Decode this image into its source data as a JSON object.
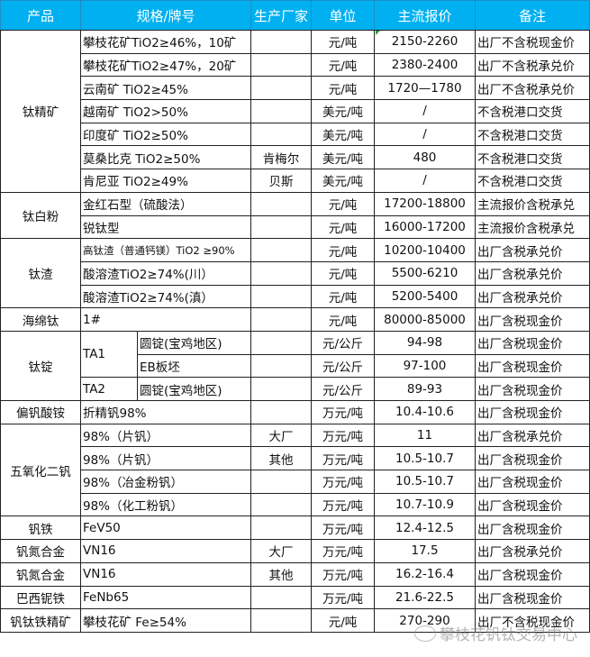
{
  "header": {
    "product": "产品",
    "spec": "规格/牌号",
    "maker": "生产厂家",
    "unit": "单位",
    "price": "主流报价",
    "note": "备注"
  },
  "colors": {
    "header_bg": "#00b0f0",
    "header_text": "#ffffff"
  },
  "groups": [
    {
      "product": "钛精矿",
      "rows": [
        {
          "spec": "攀枝花矿TiO2≥46%，10矿",
          "maker": "",
          "unit": "元/吨",
          "price": "2150-2260",
          "note": "出厂不含税现金价"
        },
        {
          "spec": "攀枝花矿TiO2≥47%，20矿",
          "maker": "",
          "unit": "元/吨",
          "price": "2380-2400",
          "note": "出厂不含税承兑价"
        },
        {
          "spec": "云南矿 TiO2≥45%",
          "maker": "",
          "unit": "元/吨",
          "price": "1720—1780",
          "note": "出厂不含税承兑价"
        },
        {
          "spec": "越南矿 TiO2>50%",
          "maker": "",
          "unit": "美元/吨",
          "price": "/",
          "note": "不含税港口交货"
        },
        {
          "spec": "印度矿 TiO2≥50%",
          "maker": "",
          "unit": "美元/吨",
          "price": "/",
          "note": "不含税港口交货"
        },
        {
          "spec": "莫桑比克 TiO2≥50%",
          "maker": "肯梅尔",
          "unit": "美元/吨",
          "price": "480",
          "note": "不含税港口交货"
        },
        {
          "spec": "肯尼亚 TiO2≥49%",
          "maker": "贝斯",
          "unit": "美元/吨",
          "price": "/",
          "note": "不含税港口交货"
        }
      ]
    },
    {
      "product": "钛白粉",
      "rows": [
        {
          "spec": "金红石型（硫酸法）",
          "maker": "",
          "unit": "元/吨",
          "price": "17200-18800",
          "note": "主流报价含税承兑"
        },
        {
          "spec": "锐钛型",
          "maker": "",
          "unit": "元/吨",
          "price": "16000-17200",
          "note": "主流报价含税承兑"
        }
      ]
    },
    {
      "product": "钛渣",
      "rows": [
        {
          "spec": "高钛渣（普通钙镁）TiO2 ≥90%",
          "small": true,
          "maker": "",
          "unit": "元/吨",
          "price": "10200-10400",
          "note": "出厂含税承兑价"
        },
        {
          "spec": "酸溶渣TiO2≥74%(川）",
          "maker": "",
          "unit": "元/吨",
          "price": "5500-6210",
          "note": "出厂含税承兑价"
        },
        {
          "spec": "酸溶渣TiO2≥74%(滇）",
          "maker": "",
          "unit": "元/吨",
          "price": "5200-5400",
          "note": "出厂含税承兑价"
        }
      ]
    },
    {
      "product": "海绵钛",
      "rows": [
        {
          "spec": "1#",
          "maker": "",
          "unit": "元/吨",
          "price": "80000-85000",
          "note": "出厂含税现金价"
        }
      ]
    },
    {
      "product": "钛锭",
      "rows": [
        {
          "grade": "TA1",
          "grade_span": 2,
          "spec": "圆锭(宝鸡地区)",
          "maker": "",
          "unit": "元/公斤",
          "price": "94-98",
          "note": "出厂含税现金价"
        },
        {
          "spec": "EB板坯",
          "maker": "",
          "unit": "元/公斤",
          "price": "97-100",
          "note": "出厂含税现金价"
        },
        {
          "grade": "TA2",
          "grade_span": 1,
          "spec": "圆锭(宝鸡地区)",
          "maker": "",
          "unit": "元/公斤",
          "price": "89-93",
          "note": "出厂含税现金价"
        }
      ]
    },
    {
      "product": "偏钒酸铵",
      "rows": [
        {
          "spec": "折精钒98%",
          "maker": "",
          "unit": "万元/吨",
          "price": "10.4-10.6",
          "note": "出厂含税现金价"
        }
      ]
    },
    {
      "product": "五氧化二钒",
      "rows": [
        {
          "spec": "98%（片钒）",
          "maker": "大厂",
          "unit": "万元/吨",
          "price": "11",
          "note": "出厂含税承兑价"
        },
        {
          "spec": "98%（片钒）",
          "maker": "其他",
          "unit": "万元/吨",
          "price": "10.5-10.7",
          "note": "出厂含税现金价"
        },
        {
          "spec": "98%（冶金粉钒）",
          "maker": "",
          "unit": "万元/吨",
          "price": "10.5-10.7",
          "note": "出厂含税现金价"
        },
        {
          "spec": "98%（化工粉钒）",
          "maker": "",
          "unit": "万元/吨",
          "price": "10.7-10.9",
          "note": "出厂含税现金价"
        }
      ]
    },
    {
      "product": "钒铁",
      "rows": [
        {
          "spec": "FeV50",
          "maker": "",
          "unit": "万元/吨",
          "price": "12.4-12.5",
          "note": "出厂含税现金价"
        }
      ]
    },
    {
      "product": "钒氮合金",
      "rows": [
        {
          "spec": "VN16",
          "maker": "大厂",
          "unit": "万元/吨",
          "price": "17.5",
          "note": "出厂含税承兑价"
        }
      ]
    },
    {
      "product": "钒氮合金",
      "rows": [
        {
          "spec": "VN16",
          "maker": "其他",
          "unit": "万元/吨",
          "price": "16.2-16.4",
          "note": "出厂含税现金价"
        }
      ]
    },
    {
      "product": "巴西铌铁",
      "rows": [
        {
          "spec": "FeNb65",
          "maker": "",
          "unit": "万元/吨",
          "price": "21.6-22.5",
          "note": "出厂含税现金价"
        }
      ]
    },
    {
      "product": "钒钛铁精矿",
      "rows": [
        {
          "spec": "攀枝花矿 Fe≥54%",
          "maker": "",
          "unit": "元/吨",
          "price": "270-290",
          "note": "出厂不含税现金价"
        }
      ]
    }
  ],
  "watermark": "攀枝花钒钛交易中心"
}
